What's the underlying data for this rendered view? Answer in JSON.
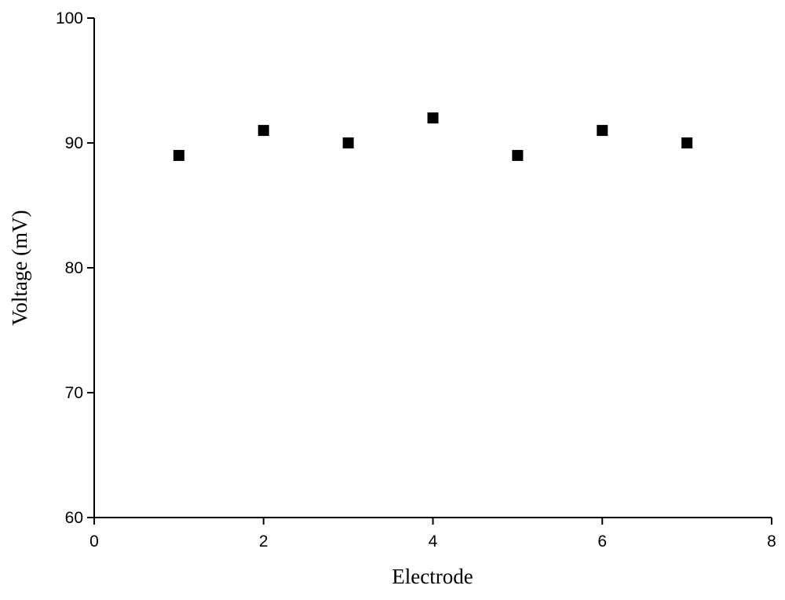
{
  "chart_data": {
    "type": "scatter",
    "x_label": "Electrode",
    "y_label": "Voltage (mV)",
    "series": [
      {
        "name": null,
        "color": "#000000",
        "marker": "square",
        "x": [
          1,
          2,
          3,
          4,
          5,
          6,
          7
        ],
        "values": [
          89,
          91,
          90,
          92,
          89,
          91,
          90
        ]
      }
    ],
    "xlim": [
      0,
      8
    ],
    "xticks": [
      0,
      2,
      4,
      6,
      8
    ],
    "ylim": [
      60,
      100
    ],
    "yticks": [
      60,
      70,
      80,
      90,
      100
    ],
    "grid": false
  }
}
